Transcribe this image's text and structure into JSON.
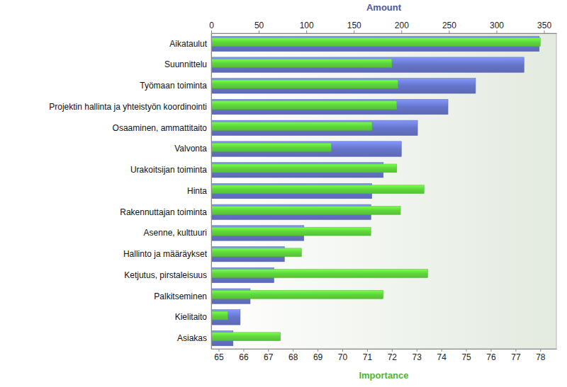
{
  "chart_data": {
    "type": "bar",
    "orientation": "horizontal",
    "categories": [
      "Aikataulut",
      "Suunnittelu",
      "Työmaan toiminta",
      "Projektin hallinta ja yhteistyön koordinointi",
      "Osaaminen, ammattitaito",
      "Valvonta",
      "Urakoitsijan toiminta",
      "Hinta",
      "Rakennuttajan toiminta",
      "Asenne, kulttuuri",
      "Hallinto ja määräykset",
      "Ketjutus, pirstaleisuus",
      "Palkitseminen",
      "Kielitaito",
      "Asiakas"
    ],
    "series": [
      {
        "name": "Amount",
        "color": "#6675c9",
        "values": [
          345,
          329,
          278,
          249,
          217,
          200,
          181,
          169,
          168,
          97.5,
          77,
          66,
          41,
          30.5,
          23
        ]
      },
      {
        "name": "Importance",
        "color": "#5fd63c",
        "axis": "y2",
        "values": [
          78.0,
          72.0,
          72.25,
          72.2,
          71.2,
          69.55,
          72.2,
          73.3,
          72.35,
          71.15,
          68.35,
          73.45,
          71.65,
          65.37,
          67.5
        ]
      }
    ],
    "ylim": [
      0,
      363
    ],
    "yticks": [
      0,
      50,
      100,
      150,
      200,
      250,
      300,
      350
    ],
    "y2lim": [
      64.7,
      78.65
    ],
    "y2ticks": [
      65,
      66,
      67,
      68,
      69,
      70,
      71,
      72,
      73,
      74,
      75,
      76,
      77,
      78
    ],
    "grid": false
  }
}
